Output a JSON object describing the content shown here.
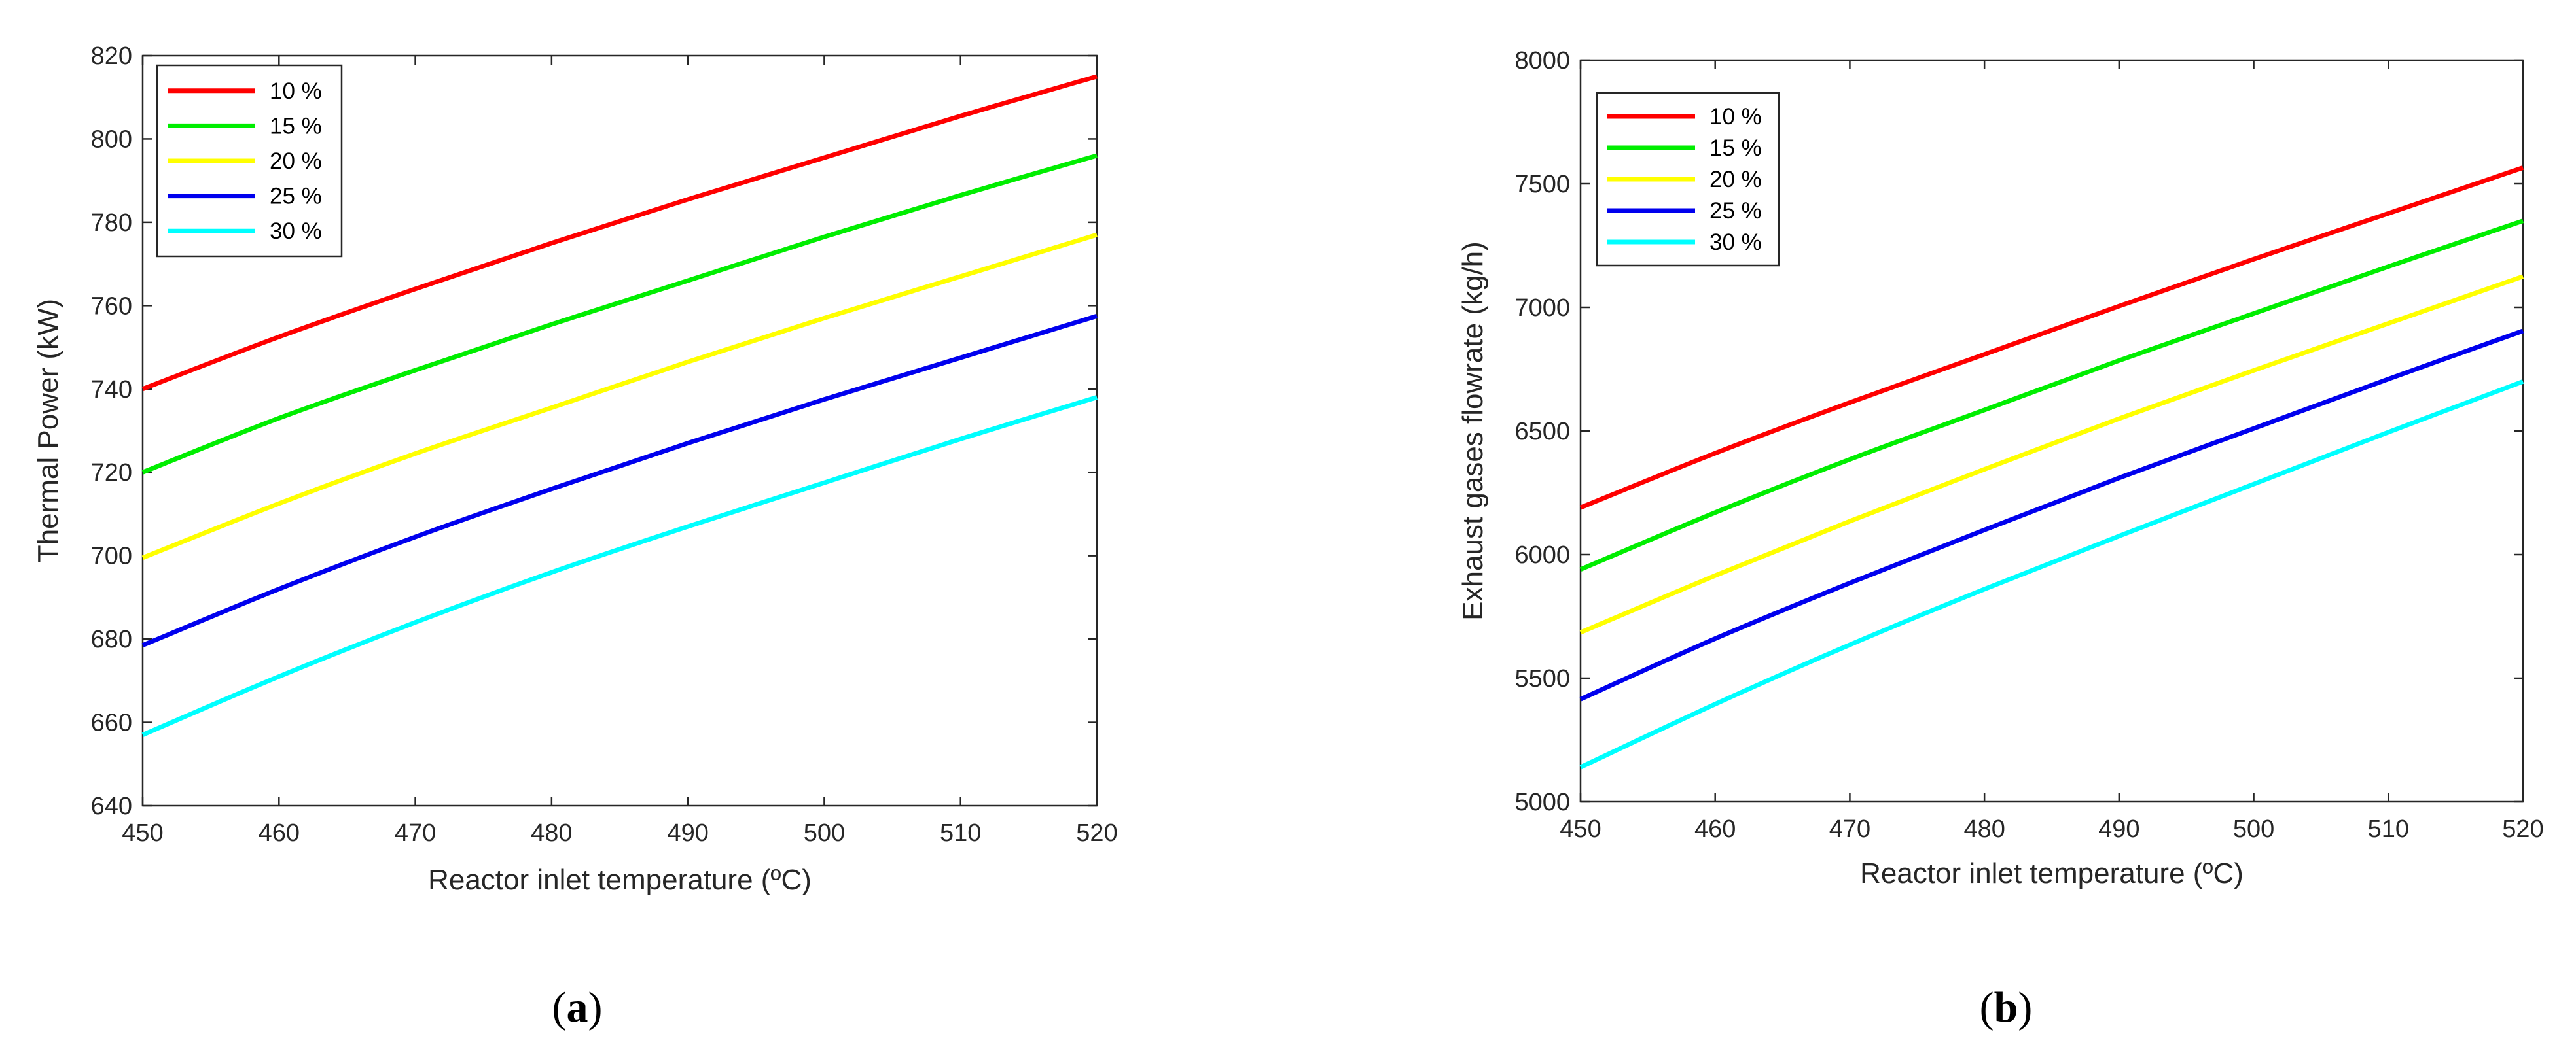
{
  "chart_data": [
    {
      "type": "line",
      "panel": "a",
      "caption": "(a)",
      "title": "",
      "xlabel": "Reactor inlet temperature (ºC)",
      "ylabel": "Thermal Power (kW)",
      "xlim": [
        450,
        520
      ],
      "ylim": [
        640,
        820
      ],
      "xticks": [
        450,
        460,
        470,
        480,
        490,
        500,
        510,
        520
      ],
      "yticks": [
        640,
        660,
        680,
        700,
        720,
        740,
        760,
        780,
        800,
        820
      ],
      "x": [
        450,
        460,
        470,
        480,
        490,
        500,
        510,
        520
      ],
      "legend_position": "top-left",
      "series": [
        {
          "name": "10 %",
          "color": "#ff0000",
          "values": [
            740,
            752.5,
            764,
            775,
            785.5,
            795.5,
            805.5,
            815
          ]
        },
        {
          "name": "15 %",
          "color": "#00ee00",
          "values": [
            720,
            733,
            744.5,
            755.5,
            766,
            776.5,
            786.5,
            796
          ]
        },
        {
          "name": "20 %",
          "color": "#ffff00",
          "values": [
            699.5,
            712.5,
            724.5,
            735.5,
            746.5,
            757,
            767,
            777
          ]
        },
        {
          "name": "25 %",
          "color": "#0000ee",
          "values": [
            678.5,
            692,
            704.5,
            716,
            727,
            737.5,
            747.5,
            757.5
          ]
        },
        {
          "name": "30 %",
          "color": "#00ffff",
          "values": [
            657,
            671,
            684,
            696,
            707,
            717.5,
            728,
            738
          ]
        }
      ]
    },
    {
      "type": "line",
      "panel": "b",
      "caption": "(b)",
      "title": "",
      "xlabel": "Reactor inlet temperature (ºC)",
      "ylabel": "Exhaust gases flowrate (kg/h)",
      "xlim": [
        450,
        520
      ],
      "ylim": [
        5000,
        8000
      ],
      "xticks": [
        450,
        460,
        470,
        480,
        490,
        500,
        510,
        520
      ],
      "yticks": [
        5000,
        5500,
        6000,
        6500,
        7000,
        7500,
        8000
      ],
      "x": [
        450,
        460,
        470,
        480,
        490,
        500,
        510,
        520
      ],
      "legend_position": "top-left",
      "series": [
        {
          "name": "10 %",
          "color": "#ff0000",
          "values": [
            6190,
            6410,
            6615,
            6810,
            7005,
            7195,
            7380,
            7565
          ]
        },
        {
          "name": "15 %",
          "color": "#00ee00",
          "values": [
            5940,
            6170,
            6385,
            6585,
            6785,
            6975,
            7165,
            7350
          ]
        },
        {
          "name": "20 %",
          "color": "#ffff00",
          "values": [
            5685,
            5915,
            6135,
            6345,
            6550,
            6745,
            6935,
            7125
          ]
        },
        {
          "name": "25 %",
          "color": "#0000ee",
          "values": [
            5415,
            5660,
            5885,
            6100,
            6310,
            6510,
            6710,
            6905
          ]
        },
        {
          "name": "30 %",
          "color": "#00ffff",
          "values": [
            5140,
            5395,
            5635,
            5860,
            6075,
            6285,
            6495,
            6700
          ]
        }
      ]
    }
  ]
}
